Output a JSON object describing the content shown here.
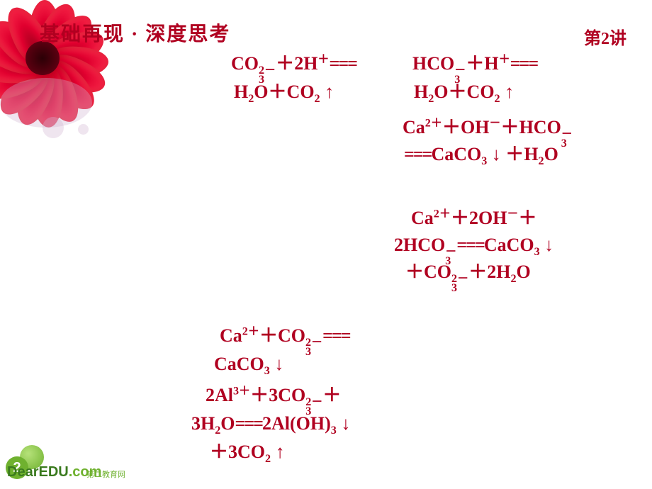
{
  "header": {
    "title": "基础再现 · 深度思考",
    "lecture": "第2讲"
  },
  "equations": {
    "eq1a": "CO<span class='supsub'><span>2－</span><span>3</span></span><span class='plus'>＋</span>2H<sup>＋</sup><span class='eqsign'>===</span>",
    "eq1b": "H<sub>2</sub>O<span class='plus'>＋</span>CO<sub>2</sub>&nbsp;<span class='arrow'>↑</span>",
    "eq2a": "HCO<span class='supsub'><span>－</span><span>3</span></span><span class='plus'>＋</span>H<sup>＋</sup><span class='eqsign'>===</span>",
    "eq2b": "H<sub>2</sub>O<span class='plus'>＋</span>CO<sub>2</sub>&nbsp;<span class='arrow'>↑</span>",
    "eq3a": "Ca<sup>2＋</sup><span class='plus'>＋</span>OH<sup>－</sup><span class='plus'>＋</span>HCO<span class='supsub'><span>－</span><span>3</span></span>",
    "eq3b": "<span class='eqsign'>===</span>CaCO<sub>3</sub>&nbsp;<span class='arrow'>↓</span>&nbsp;<span class='plus'>＋</span>H<sub>2</sub>O",
    "eq4a": "Ca<sup>2＋</sup><span class='plus'>＋</span>2OH<sup>－</sup><span class='plus'>＋</span>",
    "eq4b": "2HCO<span class='supsub'><span>－</span><span>3</span></span><span class='eqsign'>===</span>CaCO<sub>3</sub>&nbsp;<span class='arrow'>↓</span>",
    "eq4c": "<span class='plus'>＋</span>CO<span class='supsub'><span>2－</span><span>3</span></span><span class='plus'>＋</span>2H<sub>2</sub>O",
    "eq5a": "Ca<sup>2＋</sup><span class='plus'>＋</span>CO<span class='supsub'><span>2－</span><span>3</span></span><span class='eqsign'>===</span>",
    "eq5b": "CaCO<sub>3</sub>&nbsp;<span class='arrow'>↓</span>",
    "eq6a": "2Al<sup>3＋</sup><span class='plus'>＋</span>3CO<span class='supsub'><span>2－</span><span>3</span></span><span class='plus'>＋</span>",
    "eq6b": "3H<sub>2</sub>O<span class='eqsign'>===</span>2Al(OH)<sub>3</sub>&nbsp;<span class='arrow'>↓</span>",
    "eq6c": "<span class='plus'>＋</span>3CO<sub>2</sub>&nbsp;<span class='arrow'>↑</span>"
  },
  "logo": {
    "text": "DearEDU",
    "suffix": ".com",
    "cn": "第二教育网",
    "num": "2"
  },
  "colors": {
    "accent": "#b00020",
    "logo": "#6fb12f",
    "bg": "#ffffff"
  }
}
